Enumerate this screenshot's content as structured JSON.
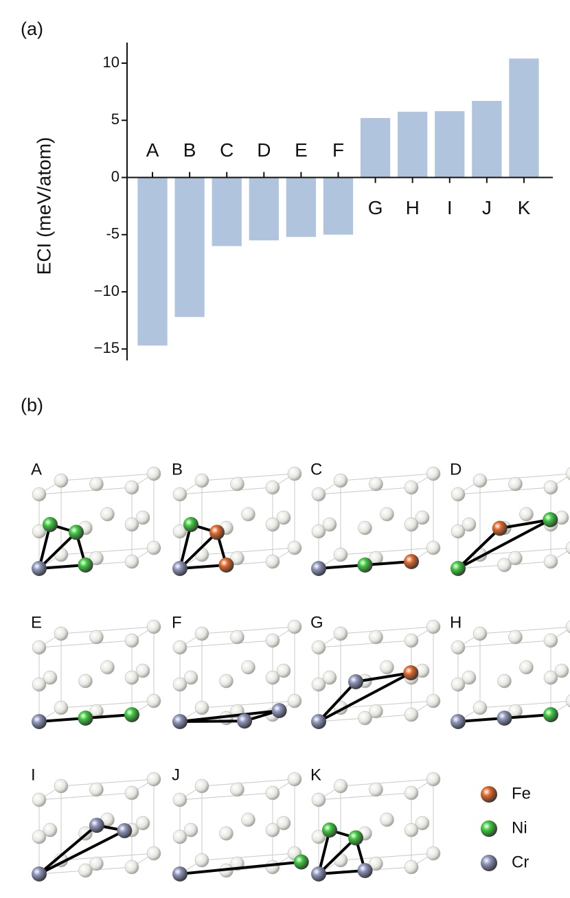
{
  "chart_data": {
    "type": "bar",
    "panel_label": "(a)",
    "ylabel": "ECI (meV/atom)",
    "categories": [
      "A",
      "B",
      "C",
      "D",
      "E",
      "F",
      "G",
      "H",
      "I",
      "J",
      "K"
    ],
    "values": [
      -14.7,
      -12.2,
      -6.0,
      -5.5,
      -5.2,
      -5.0,
      5.2,
      5.75,
      5.8,
      6.7,
      10.4
    ],
    "color": "#b0c4de",
    "ylim": [
      -16,
      11.8
    ],
    "yticks": [
      {
        "value": -15,
        "label": "−15"
      },
      {
        "value": -10,
        "label": "−10"
      },
      -5,
      0,
      5,
      10
    ],
    "grid": false
  },
  "figure_b": {
    "panel_label": "(b)",
    "clusters": [
      "A",
      "B",
      "C",
      "D",
      "E",
      "F",
      "G",
      "H",
      "I",
      "J",
      "K"
    ],
    "legend": [
      {
        "name": "Fe",
        "color": "#e0672a"
      },
      {
        "name": "Ni",
        "color": "#3cc83c"
      },
      {
        "name": "Cr",
        "color": "#8c93ba"
      }
    ]
  }
}
